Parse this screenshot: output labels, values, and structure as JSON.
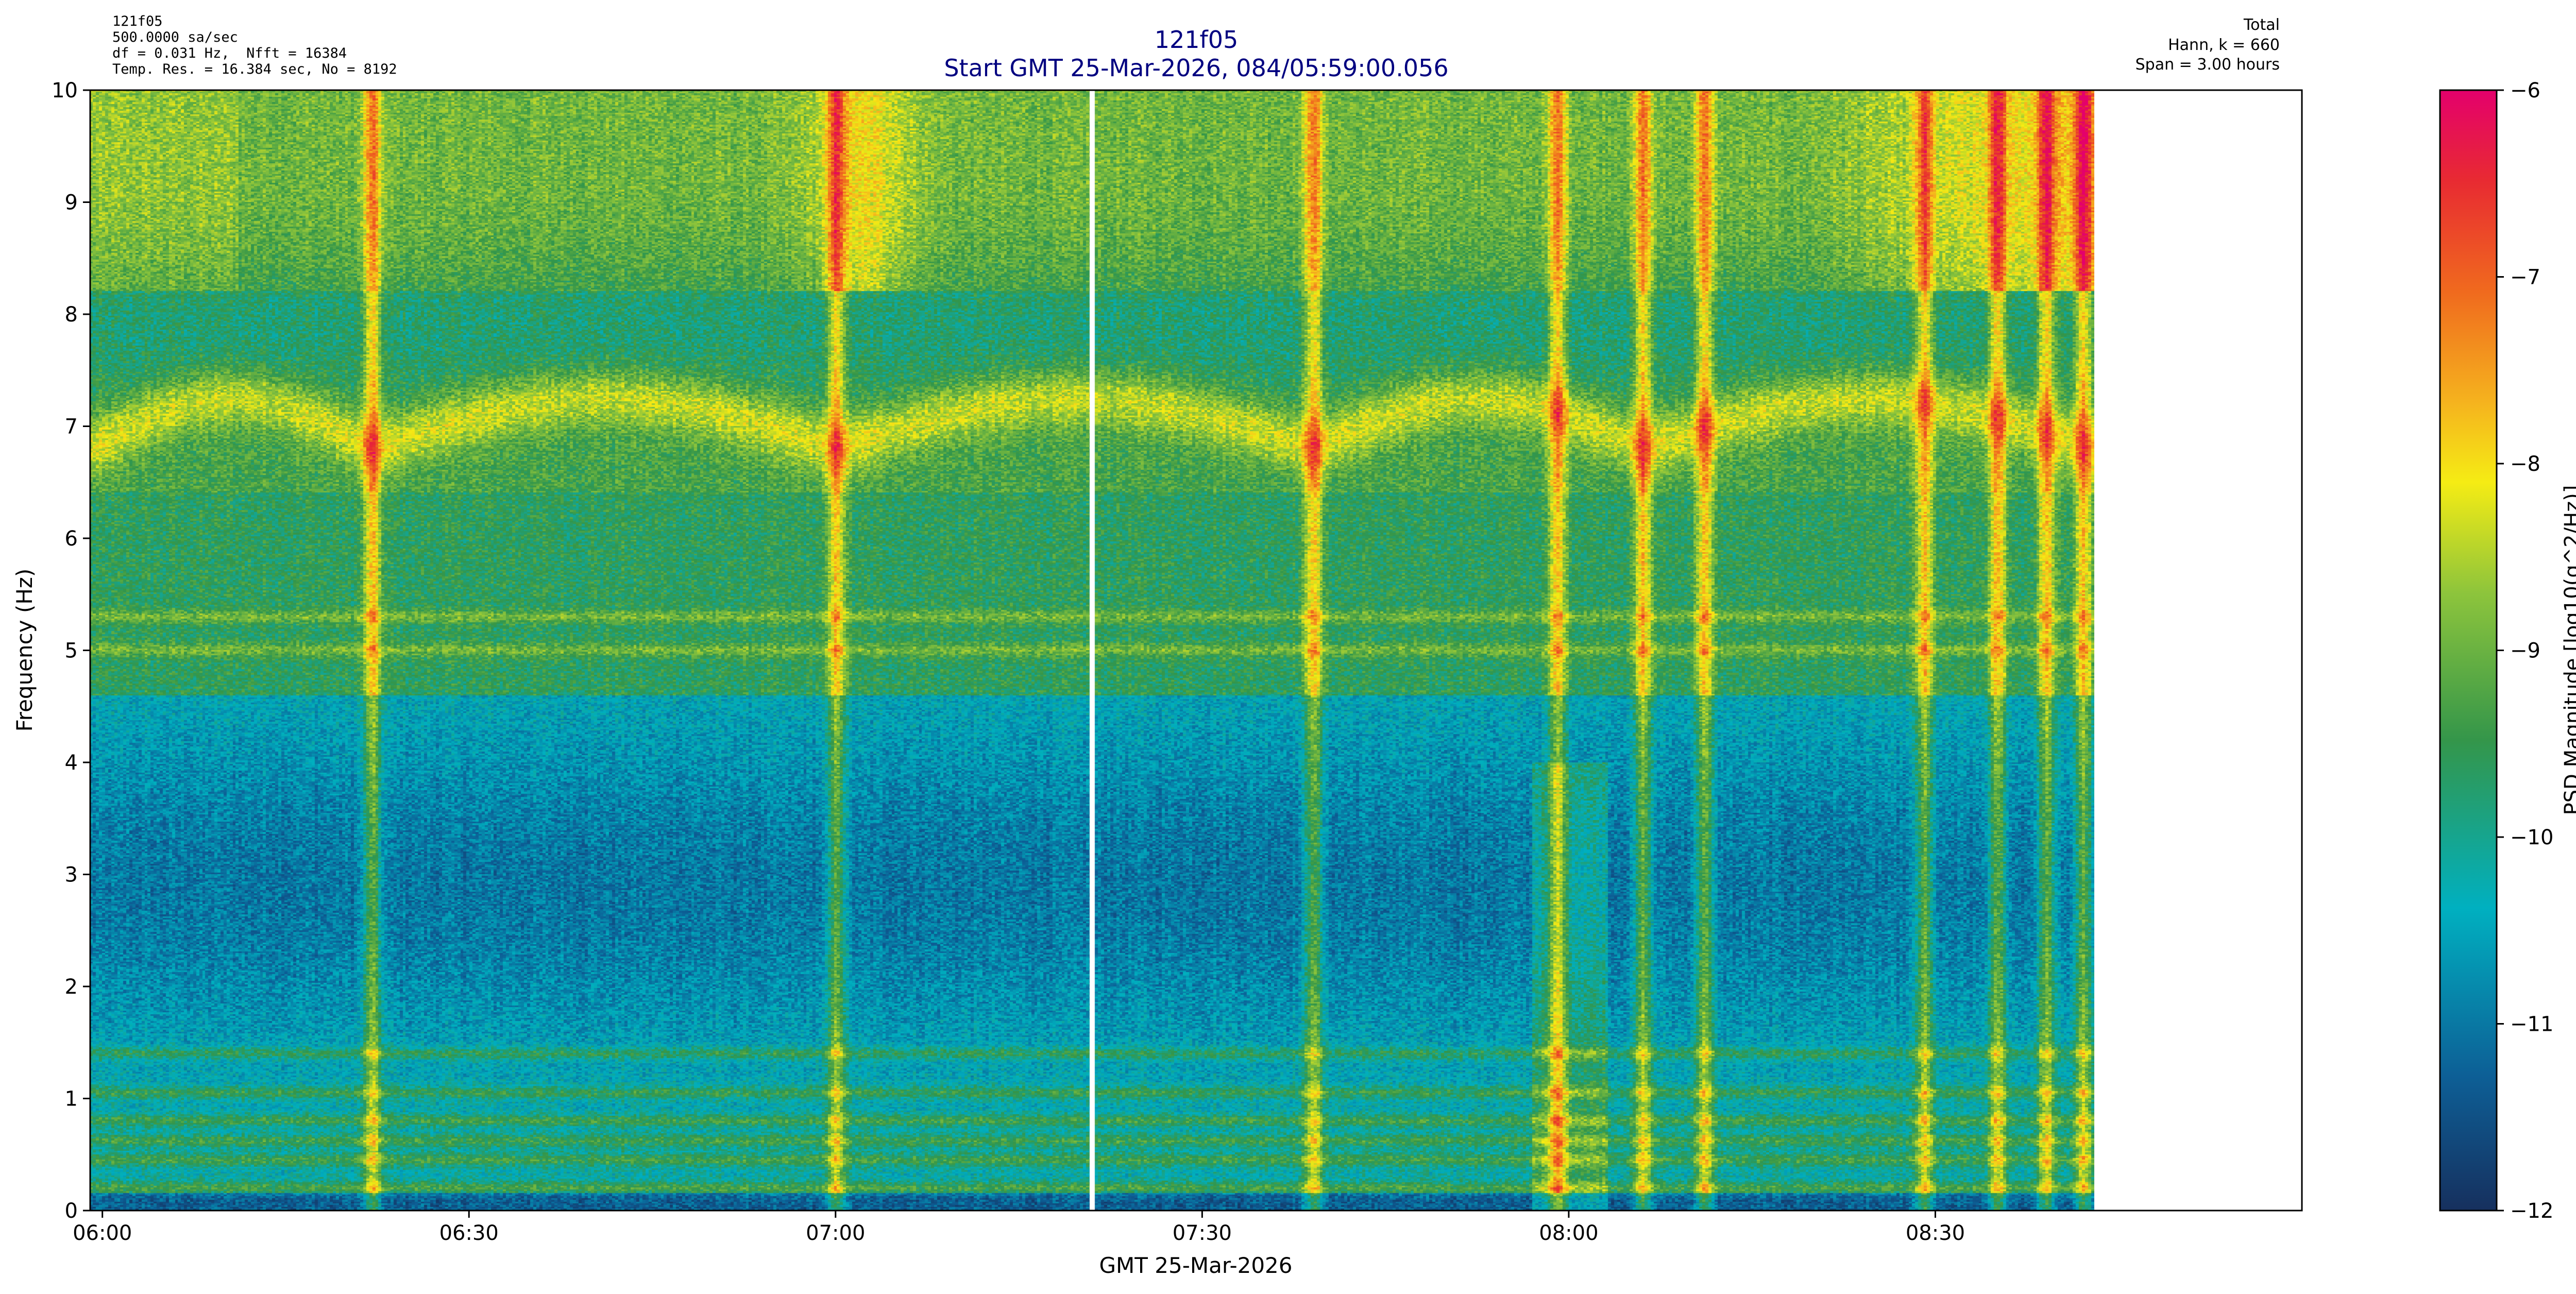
{
  "header": {
    "left_lines": [
      "121f05",
      "500.0000 sa/sec",
      "df = 0.031 Hz,  Nfft = 16384",
      "Temp. Res. = 16.384 sec, No = 8192"
    ],
    "title": "121f05",
    "subtitle": "Start GMT 25-Mar-2026, 084/05:59:00.056",
    "right_lines": [
      "Total",
      "Hann, k = 660",
      "Span = 3.00 hours"
    ]
  },
  "chart_data": {
    "type": "heatmap",
    "title": "121f05",
    "subtitle": "Start GMT 25-Mar-2026, 084/05:59:00.056",
    "xlabel": "GMT 25-Mar-2026",
    "ylabel": "Frequency (Hz)",
    "colorbar_label": "PSD Magnitude [log10(g^2/Hz)]",
    "xlim_minutes_after_0559": [
      0,
      181
    ],
    "data_end_minutes_after_0559": [
      164
    ],
    "gap_at_minutes_after_0559": [
      82
    ],
    "ylim": [
      0,
      10
    ],
    "clim": [
      -12,
      -6
    ],
    "x_ticks": [
      "06:00",
      "06:30",
      "07:00",
      "07:30",
      "08:00",
      "08:30"
    ],
    "x_tick_minutes_after_0559": [
      1,
      31,
      61,
      91,
      121,
      151
    ],
    "y_ticks": [
      "0",
      "1",
      "2",
      "3",
      "4",
      "5",
      "6",
      "7",
      "8",
      "9",
      "10"
    ],
    "colorbar_ticks": [
      "−12",
      "−11",
      "−10",
      "−9",
      "−8",
      "−7",
      "−6"
    ],
    "colormap": [
      "#16305e",
      "#0d5f96",
      "#00b0c0",
      "#34964a",
      "#8cc43c",
      "#f5ec14",
      "#f5b41e",
      "#f06a1e",
      "#e82a32",
      "#e4006c"
    ],
    "colormap_stops": [
      0,
      0.12,
      0.27,
      0.42,
      0.55,
      0.65,
      0.72,
      0.82,
      0.92,
      1
    ],
    "features": {
      "steady_lines_hz": [
        0.2,
        0.45,
        0.62,
        0.8,
        1.05,
        1.4,
        5.0,
        5.3
      ],
      "arch_band_hz_range": [
        6.8,
        7.3
      ],
      "high_freq_region_hz": [
        8.2,
        10
      ],
      "broadband_events_minutes": [
        23,
        61,
        100,
        120,
        127,
        132,
        150,
        156,
        160,
        163
      ]
    }
  }
}
